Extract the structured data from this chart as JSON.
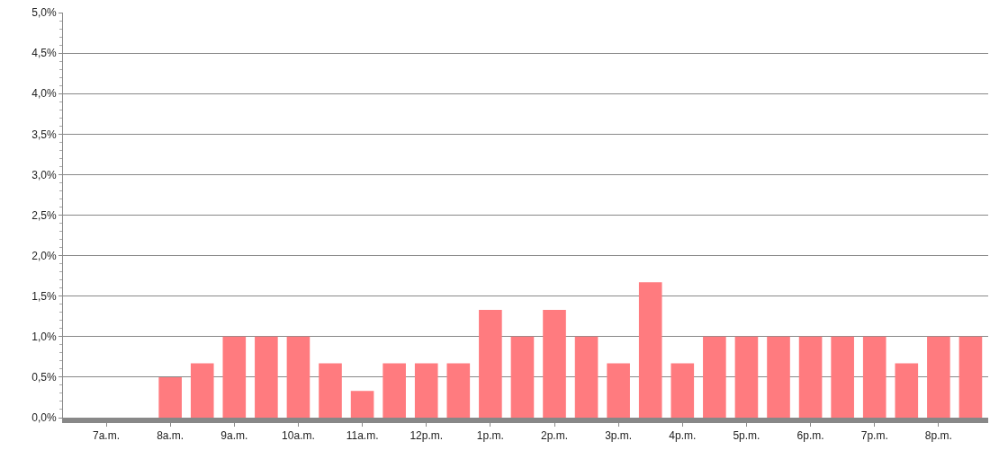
{
  "chart_data": {
    "type": "bar",
    "categories": [
      "7a.m.",
      null,
      "8a.m.",
      null,
      "9a.m.",
      null,
      "10a.m.",
      null,
      "11a.m.",
      null,
      "12p.m.",
      null,
      "1p.m.",
      null,
      "2p.m.",
      null,
      "3p.m.",
      null,
      "4p.m.",
      null,
      "5p.m.",
      null,
      "6p.m.",
      null,
      "7p.m.",
      null,
      "8p.m.",
      null
    ],
    "values": [
      null,
      null,
      0.5,
      0.67,
      1.0,
      1.0,
      1.0,
      0.67,
      0.33,
      0.67,
      0.67,
      0.67,
      1.33,
      1.0,
      1.33,
      1.0,
      0.67,
      1.67,
      0.67,
      1.0,
      1.0,
      1.0,
      1.0,
      1.0,
      1.0,
      0.67,
      1.0,
      1.0
    ],
    "color": "#ff7b7f",
    "ylim": [
      0,
      5
    ],
    "yticks": [
      {
        "value": 0,
        "label": "0,0%"
      },
      {
        "value": 0.5,
        "label": "0,5%"
      },
      {
        "value": 1,
        "label": "1,0%"
      },
      {
        "value": 1.5,
        "label": "1,5%"
      },
      {
        "value": 2,
        "label": "2,0%"
      },
      {
        "value": 2.5,
        "label": "2,5%"
      },
      {
        "value": 3,
        "label": "3,0%"
      },
      {
        "value": 3.5,
        "label": "3,5%"
      },
      {
        "value": 4,
        "label": "4,0%"
      },
      {
        "value": 4.5,
        "label": "4,5%"
      },
      {
        "value": 5,
        "label": "5,0%"
      }
    ],
    "grid": "y"
  }
}
